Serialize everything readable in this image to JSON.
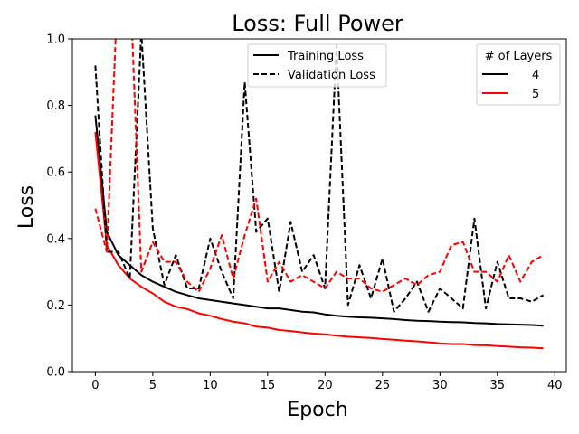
{
  "chart_data": {
    "type": "line",
    "title": "Loss: Full Power",
    "xlabel": "Epoch",
    "ylabel": "Loss",
    "xlim": [
      -2,
      41
    ],
    "ylim": [
      0.0,
      1.0
    ],
    "xticks": [
      0,
      5,
      10,
      15,
      20,
      25,
      30,
      35,
      40
    ],
    "yticks": [
      0.0,
      0.2,
      0.4,
      0.6,
      0.8,
      1.0
    ],
    "xtick_labels": [
      "0",
      "5",
      "10",
      "15",
      "20",
      "25",
      "30",
      "35",
      "40"
    ],
    "ytick_labels": [
      "0.0",
      "0.2",
      "0.4",
      "0.6",
      "0.8",
      "1.0"
    ],
    "grid": false,
    "x": [
      0,
      1,
      2,
      3,
      4,
      5,
      6,
      7,
      8,
      9,
      10,
      11,
      12,
      13,
      14,
      15,
      16,
      17,
      18,
      19,
      20,
      21,
      22,
      23,
      24,
      25,
      26,
      27,
      28,
      29,
      30,
      31,
      32,
      33,
      34,
      35,
      36,
      37,
      38,
      39
    ],
    "series": [
      {
        "name": "Training Loss (4 layers)",
        "layers": "4",
        "kind": "Training Loss",
        "color": "#000000",
        "dash": "solid",
        "values": [
          0.77,
          0.42,
          0.35,
          0.32,
          0.29,
          0.27,
          0.255,
          0.24,
          0.23,
          0.22,
          0.215,
          0.21,
          0.205,
          0.2,
          0.195,
          0.19,
          0.19,
          0.185,
          0.18,
          0.178,
          0.172,
          0.168,
          0.165,
          0.163,
          0.162,
          0.16,
          0.158,
          0.155,
          0.153,
          0.152,
          0.15,
          0.149,
          0.148,
          0.146,
          0.145,
          0.143,
          0.142,
          0.141,
          0.14,
          0.138
        ]
      },
      {
        "name": "Training Loss (5 layers)",
        "layers": "5",
        "kind": "Training Loss",
        "color": "#ff0000",
        "dash": "solid",
        "values": [
          0.72,
          0.38,
          0.32,
          0.28,
          0.255,
          0.235,
          0.21,
          0.195,
          0.188,
          0.175,
          0.168,
          0.158,
          0.15,
          0.145,
          0.135,
          0.132,
          0.125,
          0.122,
          0.118,
          0.114,
          0.112,
          0.108,
          0.105,
          0.103,
          0.101,
          0.098,
          0.096,
          0.093,
          0.091,
          0.088,
          0.085,
          0.083,
          0.083,
          0.08,
          0.079,
          0.077,
          0.075,
          0.073,
          0.072,
          0.07
        ]
      },
      {
        "name": "Validation Loss (4 layers)",
        "layers": "4",
        "kind": "Validation Loss",
        "color": "#000000",
        "dash": "dashed",
        "values": [
          0.92,
          0.36,
          0.36,
          0.28,
          1.02,
          0.43,
          0.26,
          0.35,
          0.25,
          0.25,
          0.4,
          0.3,
          0.22,
          0.87,
          0.42,
          0.46,
          0.24,
          0.45,
          0.3,
          0.35,
          0.25,
          0.98,
          0.2,
          0.32,
          0.22,
          0.34,
          0.18,
          0.22,
          0.27,
          0.18,
          0.25,
          0.22,
          0.19,
          0.46,
          0.19,
          0.33,
          0.22,
          0.22,
          0.21,
          0.23
        ]
      },
      {
        "name": "Validation Loss (5 layers)",
        "layers": "5",
        "kind": "Validation Loss",
        "color": "#ff0000",
        "dash": "dashed",
        "values": [
          0.49,
          0.36,
          1.2,
          1.2,
          0.3,
          0.39,
          0.33,
          0.33,
          0.27,
          0.24,
          0.31,
          0.41,
          0.28,
          0.41,
          0.52,
          0.27,
          0.33,
          0.27,
          0.29,
          0.27,
          0.25,
          0.3,
          0.28,
          0.28,
          0.25,
          0.24,
          0.26,
          0.28,
          0.26,
          0.29,
          0.3,
          0.38,
          0.39,
          0.3,
          0.3,
          0.27,
          0.35,
          0.27,
          0.33,
          0.35
        ]
      }
    ],
    "legend_style": {
      "title": "",
      "location": "upper center",
      "entries": [
        {
          "label": "Training Loss",
          "dash": "solid",
          "color": "#000000"
        },
        {
          "label": "Validation Loss",
          "dash": "dashed",
          "color": "#000000"
        }
      ]
    },
    "legend_layers": {
      "title": "# of Layers",
      "location": "upper right",
      "entries": [
        {
          "label": "4",
          "dash": "solid",
          "color": "#000000"
        },
        {
          "label": "5",
          "dash": "solid",
          "color": "#ff0000"
        }
      ]
    }
  }
}
